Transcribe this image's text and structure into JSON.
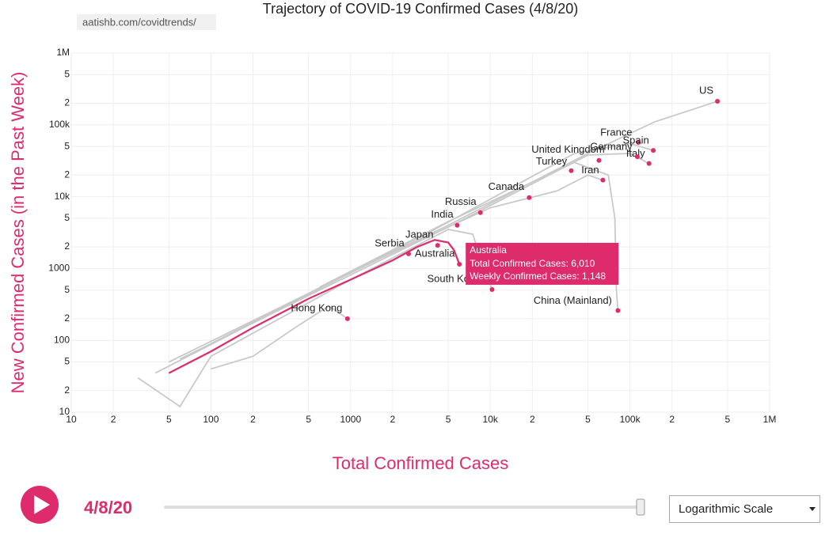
{
  "chart_data": {
    "type": "scatter",
    "title": "Trajectory of COVID-19 Confirmed Cases (4/8/20)",
    "source": "aatishb.com/covidtrends/",
    "xlabel": "Total Confirmed Cases",
    "ylabel": "New Confirmed Cases (in the Past Week)",
    "log_x": true,
    "log_y": true,
    "grid": true,
    "highlight_color": "#dd2b6c",
    "line_color": "#c9c9c9",
    "xlim": [
      10,
      1000000
    ],
    "ylim": [
      10,
      1000000
    ],
    "xticks": [
      10,
      {
        "value": 20,
        "label": "2"
      },
      {
        "value": 50,
        "label": "5"
      },
      100,
      {
        "value": 200,
        "label": "2"
      },
      {
        "value": 500,
        "label": "5"
      },
      1000,
      {
        "value": 2000,
        "label": "2"
      },
      {
        "value": 5000,
        "label": "5"
      },
      {
        "value": 10000,
        "label": "10k"
      },
      {
        "value": 20000,
        "label": "2"
      },
      {
        "value": 50000,
        "label": "5"
      },
      {
        "value": 100000,
        "label": "100k"
      },
      {
        "value": 200000,
        "label": "2"
      },
      {
        "value": 500000,
        "label": "5"
      },
      {
        "value": 1000000,
        "label": "1M"
      }
    ],
    "yticks": [
      10,
      {
        "value": 20,
        "label": "2"
      },
      {
        "value": 50,
        "label": "5"
      },
      100,
      {
        "value": 200,
        "label": "2"
      },
      {
        "value": 500,
        "label": "5"
      },
      1000,
      {
        "value": 2000,
        "label": "2"
      },
      {
        "value": 5000,
        "label": "5"
      },
      {
        "value": 10000,
        "label": "10k"
      },
      {
        "value": 20000,
        "label": "2"
      },
      {
        "value": 50000,
        "label": "5"
      },
      {
        "value": 100000,
        "label": "100k"
      },
      {
        "value": 200000,
        "label": "2"
      },
      {
        "value": 500000,
        "label": "5"
      },
      {
        "value": 1000000,
        "label": "1M"
      }
    ],
    "points": [
      {
        "label": "US",
        "x": 423000,
        "y": 213000,
        "path_x": [
          50,
          500,
          5000,
          50000,
          150000,
          423000
        ],
        "path_y": [
          50,
          450,
          4000,
          40000,
          110000,
          213000
        ]
      },
      {
        "label": "France",
        "x": 115000,
        "y": 57000
      },
      {
        "label": "Spain",
        "x": 147000,
        "y": 44000,
        "path_x": [
          40,
          400,
          4000,
          40000,
          100000,
          147000
        ],
        "path_y": [
          35,
          350,
          3500,
          40000,
          55000,
          44000
        ]
      },
      {
        "label": "Italy",
        "x": 137000,
        "y": 29000,
        "path_x": [
          60,
          600,
          6000,
          50000,
          100000,
          137000
        ],
        "path_y": [
          55,
          500,
          4500,
          38000,
          40000,
          29000
        ]
      },
      {
        "label": "Germany",
        "x": 113000,
        "y": 36000
      },
      {
        "label": "United Kingdom",
        "x": 60000,
        "y": 32000
      },
      {
        "label": "Turkey",
        "x": 38000,
        "y": 23000
      },
      {
        "label": "Iran",
        "x": 64000,
        "y": 17000,
        "path_x": [
          100,
          1000,
          10000,
          30000,
          50000,
          64000
        ],
        "path_y": [
          90,
          900,
          7000,
          12000,
          20000,
          17000
        ]
      },
      {
        "label": "Canada",
        "x": 19000,
        "y": 9700
      },
      {
        "label": "Russia",
        "x": 8500,
        "y": 6000
      },
      {
        "label": "India",
        "x": 5800,
        "y": 4000
      },
      {
        "label": "Japan",
        "x": 4200,
        "y": 2100
      },
      {
        "label": "Serbia",
        "x": 2600,
        "y": 1600
      },
      {
        "label": "Australia",
        "x": 6010,
        "y": 1148,
        "highlight": true,
        "path_x": [
          50,
          60,
          100,
          200,
          500,
          1000,
          2000,
          3000,
          4000,
          5000,
          5500,
          6010
        ],
        "path_y": [
          35,
          42,
          70,
          150,
          380,
          700,
          1300,
          2000,
          2500,
          2300,
          1800,
          1148
        ]
      },
      {
        "label": "South Korea",
        "x": 10300,
        "y": 510,
        "path_x": [
          30,
          60,
          100,
          1000,
          5000,
          7500,
          9000,
          10300
        ],
        "path_y": [
          30,
          12,
          60,
          700,
          3500,
          3000,
          1000,
          510
        ]
      },
      {
        "label": "Hong Kong",
        "x": 950,
        "y": 200,
        "path_x": [
          100,
          200,
          400,
          700,
          950
        ],
        "path_y": [
          40,
          60,
          150,
          300,
          200
        ]
      },
      {
        "label": "China (Mainland)",
        "x": 82000,
        "y": 260,
        "path_x": [
          600,
          5000,
          40000,
          70000,
          78000,
          80000,
          82000
        ],
        "path_y": [
          550,
          4500,
          30000,
          20000,
          5000,
          500,
          260
        ]
      }
    ],
    "tooltip": {
      "name": "Australia",
      "lines": [
        "Total Confirmed Cases: 6,010",
        "Weekly Confirmed Cases: 1,148"
      ]
    }
  },
  "ui": {
    "date": "4/8/20",
    "scale_option": "Logarithmic Scale"
  }
}
